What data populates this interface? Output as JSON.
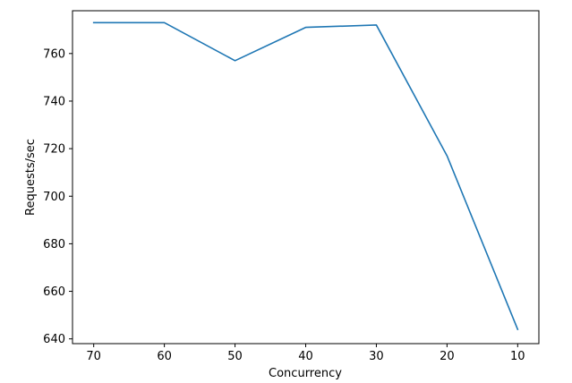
{
  "chart_data": {
    "type": "line",
    "title": "",
    "xlabel": "Concurrency",
    "ylabel": "Requests/sec",
    "x_axis_order": "descending",
    "x": [
      70,
      60,
      50,
      40,
      30,
      20,
      10
    ],
    "xticks": [
      "70",
      "60",
      "50",
      "40",
      "30",
      "20",
      "10"
    ],
    "series": [
      {
        "values": [
          773,
          773,
          757,
          771,
          772,
          717,
          644
        ]
      }
    ],
    "yticks": [
      "640",
      "660",
      "680",
      "700",
      "720",
      "740",
      "760"
    ],
    "xlim": [
      73,
      7
    ],
    "ylim": [
      638,
      778
    ],
    "grid": false,
    "line_color": "#1f77b4"
  }
}
